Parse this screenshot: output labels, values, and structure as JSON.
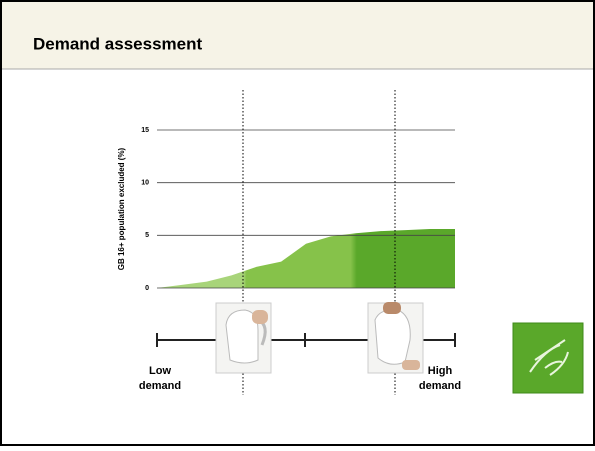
{
  "header": {
    "title": "Demand assessment"
  },
  "chart_data": {
    "type": "area",
    "ylabel": "GB 16+ population excluded (%)",
    "categories": [
      null,
      null,
      null,
      null,
      null,
      null,
      null,
      null,
      null,
      null,
      null,
      null,
      null
    ],
    "values": [
      0,
      0.3,
      0.6,
      1.2,
      2.0,
      2.5,
      4.2,
      4.9,
      5.2,
      5.4,
      5.5,
      5.6,
      5.6
    ],
    "colors": [
      "#a8d47a",
      "#86c24a",
      "#5aa82a"
    ],
    "ylim": [
      0,
      15
    ],
    "yticks": [
      0,
      5,
      10,
      15
    ],
    "grid": true
  },
  "scale": {
    "low": [
      "Low",
      "demand"
    ],
    "high": [
      "High",
      "demand"
    ]
  }
}
